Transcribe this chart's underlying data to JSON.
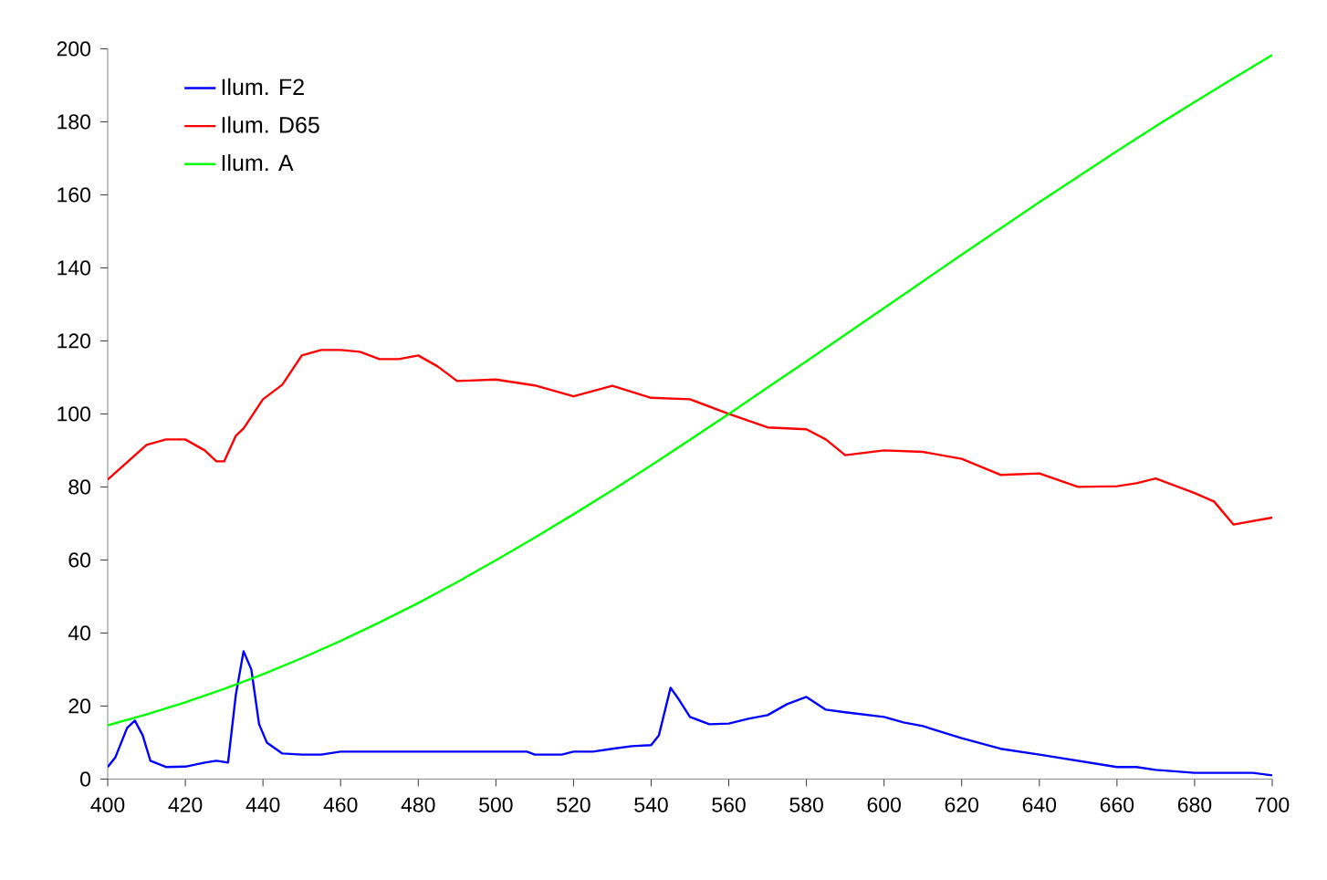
{
  "chart_data": {
    "type": "line",
    "xlim": [
      400,
      700
    ],
    "ylim": [
      0,
      200
    ],
    "xticks": [
      400,
      420,
      440,
      460,
      480,
      500,
      520,
      540,
      560,
      580,
      600,
      620,
      640,
      660,
      680,
      700
    ],
    "yticks": [
      0,
      20,
      40,
      60,
      80,
      100,
      120,
      140,
      160,
      180,
      200
    ],
    "legend": "top left",
    "grid": false,
    "series": [
      {
        "name": "Ilum. F2",
        "color": "#0000ff",
        "x": [
          400,
          402,
          405,
          407,
          409,
          411,
          415,
          420,
          425,
          428,
          431,
          433,
          435,
          437,
          439,
          441,
          445,
          450,
          455,
          460,
          480,
          500,
          508,
          510,
          517,
          520,
          525,
          530,
          535,
          540,
          542,
          545,
          547,
          550,
          555,
          560,
          565,
          570,
          575,
          580,
          585,
          590,
          600,
          605,
          610,
          620,
          630,
          640,
          650,
          660,
          665,
          670,
          680,
          690,
          695,
          700
        ],
        "values": [
          3.3,
          6,
          14,
          16,
          12,
          5,
          3.3,
          3.4,
          4.5,
          5,
          4.5,
          23,
          35,
          30,
          15,
          10,
          7,
          6.7,
          6.7,
          7.5,
          7.5,
          7.5,
          7.5,
          6.7,
          6.7,
          7.5,
          7.5,
          8.3,
          9,
          9.3,
          12,
          25,
          22,
          17,
          15,
          15.2,
          16.5,
          17.5,
          20.5,
          22.5,
          19,
          18.3,
          17,
          15.5,
          14.5,
          11.2,
          8.3,
          6.7,
          5,
          3.3,
          3.3,
          2.5,
          1.7,
          1.7,
          1.7,
          1
        ]
      },
      {
        "name": "Ilum. D65",
        "color": "#ff0000",
        "x": [
          400,
          410,
          415,
          420,
          425,
          428,
          430,
          433,
          435,
          440,
          445,
          450,
          455,
          460,
          465,
          470,
          475,
          480,
          485,
          490,
          500,
          510,
          520,
          530,
          540,
          550,
          560,
          570,
          580,
          585,
          590,
          600,
          610,
          620,
          630,
          640,
          650,
          660,
          665,
          670,
          680,
          685,
          690,
          700
        ],
        "values": [
          82,
          91.5,
          93,
          93,
          90,
          87,
          87,
          94,
          96,
          104,
          108,
          116,
          117.5,
          117.5,
          117,
          115,
          115,
          116,
          113,
          109,
          109.4,
          107.8,
          104.8,
          107.7,
          104.4,
          104,
          100,
          96.3,
          95.8,
          93,
          88.7,
          90,
          89.6,
          87.7,
          83.3,
          83.7,
          80,
          80.2,
          81,
          82.3,
          78.3,
          76,
          69.7,
          71.6
        ]
      },
      {
        "name": "Ilum. A",
        "color": "#00ff00",
        "x": [
          400,
          410,
          420,
          430,
          440,
          450,
          460,
          470,
          480,
          490,
          500,
          510,
          520,
          530,
          540,
          550,
          560,
          570,
          580,
          590,
          600,
          610,
          620,
          630,
          640,
          650,
          660,
          670,
          680,
          690,
          700
        ],
        "values": [
          14.7,
          17.7,
          21,
          24.7,
          28.7,
          33.1,
          37.8,
          42.9,
          48.2,
          53.9,
          59.9,
          66.1,
          72.5,
          79.1,
          85.9,
          92.9,
          100,
          107.2,
          114.4,
          121.7,
          129,
          136.3,
          143.6,
          150.8,
          158,
          165,
          172,
          178.8,
          185.4,
          191.9,
          198.3
        ]
      }
    ]
  }
}
